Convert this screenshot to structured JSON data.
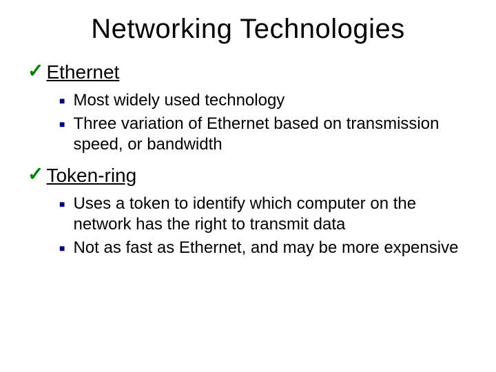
{
  "title": "Networking Technologies",
  "colors": {
    "check": "#008000",
    "square": "#000080",
    "text": "#000000",
    "background": "#ffffff"
  },
  "typography": {
    "title_fontsize": 40,
    "section_fontsize": 28,
    "bullet_fontsize": 24,
    "family": "Arial"
  },
  "sections": [
    {
      "heading": "Ethernet",
      "bullets": [
        "Most widely used technology",
        "Three variation of Ethernet based on transmission speed, or bandwidth"
      ]
    },
    {
      "heading": "Token-ring",
      "bullets": [
        "Uses a token to identify which computer on the network has the right to transmit data",
        "Not as fast as Ethernet, and may be more expensive"
      ]
    }
  ]
}
